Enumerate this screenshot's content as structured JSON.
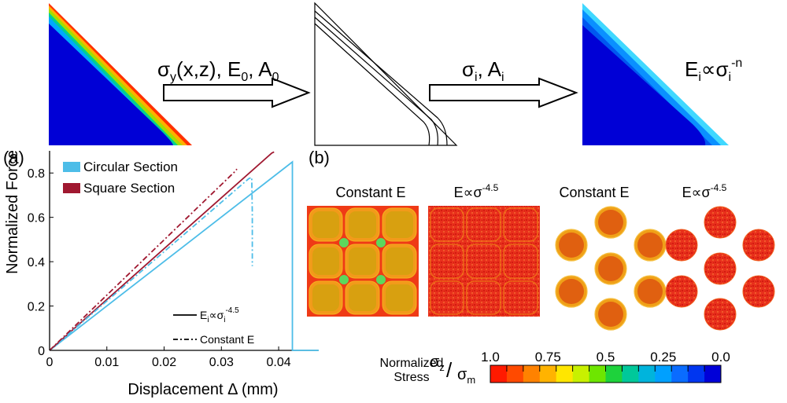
{
  "workflow": {
    "arrow1_label": "σy(x,z), E0, A0",
    "arrow2_label": "σi, Ai",
    "result_label": "Ei∝σi-n"
  },
  "panel_a": {
    "label": "(a)",
    "legend_lines": [
      "Ei∝σi-4.5",
      "Constant E"
    ]
  },
  "panel_b": {
    "label": "(b)",
    "titles": [
      "Constant E",
      "E∝σ-4.5",
      "Constant E",
      "E∝σ-4.5"
    ],
    "colorbar": {
      "label_line1": "Normalized",
      "label_line2": "Stress",
      "ratio_label": "σz/σm",
      "ticks": [
        "1.0",
        "0.75",
        "0.5",
        "0.25",
        "0.0"
      ],
      "colors": [
        "#ff1a00",
        "#ff4a00",
        "#ff8200",
        "#ffb300",
        "#ffe600",
        "#c8f000",
        "#6ee600",
        "#1ed23c",
        "#00c89a",
        "#00b4dc",
        "#00a0ff",
        "#0a6cff",
        "#0036f0",
        "#0000d8"
      ]
    }
  },
  "chart_data": {
    "type": "line",
    "xlabel": "Displacement Δ (mm)",
    "ylabel": "Normalized Force",
    "xlim": [
      0,
      0.047
    ],
    "ylim": [
      0,
      0.9
    ],
    "xticks": [
      "0",
      "0.01",
      "0.02",
      "0.03",
      "0.04"
    ],
    "yticks": [
      "0",
      "0.2",
      "0.4",
      "0.6",
      "0.8"
    ],
    "legend": [
      {
        "name": "Circular Section",
        "color": "#4dbde8"
      },
      {
        "name": "Square Section",
        "color": "#a01830"
      }
    ],
    "legend_position": "top-left",
    "series": [
      {
        "name": "Circular Section",
        "style": "solid",
        "color": "#4dbde8",
        "x": [
          0,
          0.0424,
          0.0424,
          0.047
        ],
        "y": [
          0,
          0.85,
          0,
          0
        ]
      },
      {
        "name": "Square Section",
        "style": "solid",
        "color": "#a01830",
        "x": [
          0,
          0.0388,
          0.0392
        ],
        "y": [
          0,
          0.89,
          0.895
        ]
      },
      {
        "name": "Circular Section",
        "style": "dashdot",
        "color": "#4dbde8",
        "x": [
          0,
          0.0348,
          0.0353,
          0.0354,
          0.0354
        ],
        "y": [
          0,
          0.775,
          0.78,
          0.62,
          0.38
        ]
      },
      {
        "name": "Square Section",
        "style": "dashdot",
        "color": "#a01830",
        "x": [
          0,
          0.0325,
          0.0327
        ],
        "y": [
          0,
          0.81,
          0.818
        ]
      }
    ]
  }
}
